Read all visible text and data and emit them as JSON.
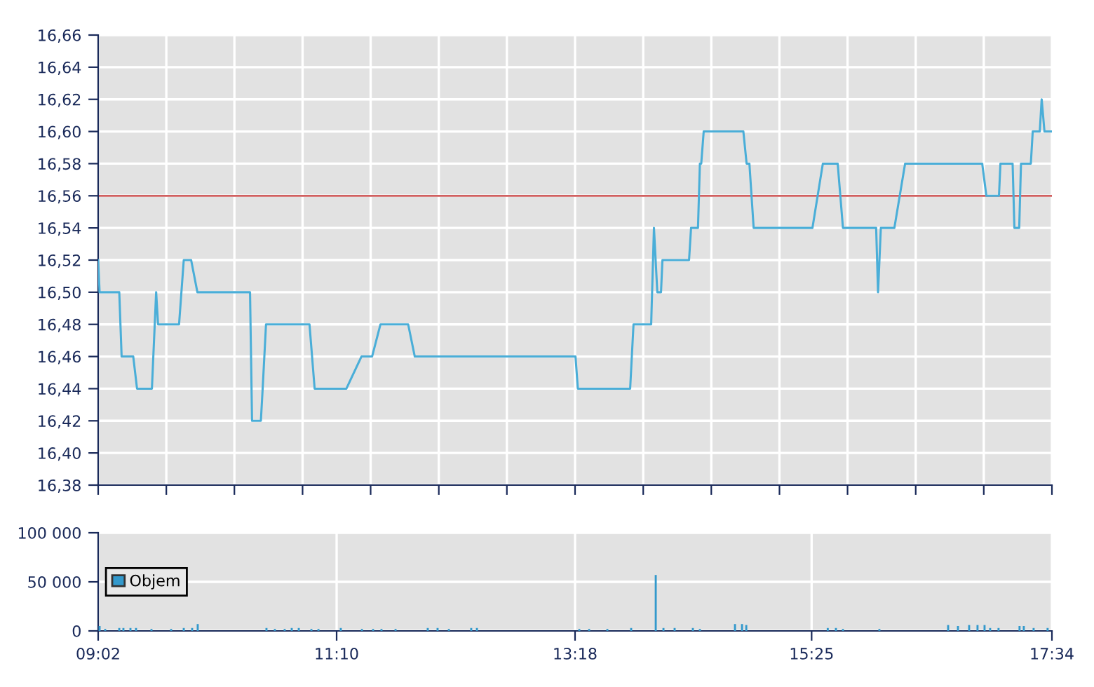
{
  "chart_data": [
    {
      "type": "line",
      "grid": true,
      "tick_labels": "y",
      "legend": false,
      "marker": "none",
      "line_style": "solid",
      "xlim": [
        9.0333,
        17.5667
      ],
      "xticks": [
        {
          "value": 9.0333,
          "label": null
        },
        {
          "value": 9.643,
          "label": null
        },
        {
          "value": 10.252,
          "label": null
        },
        {
          "value": 10.862,
          "label": null
        },
        {
          "value": 11.471,
          "label": null
        },
        {
          "value": 12.081,
          "label": null
        },
        {
          "value": 12.69,
          "label": null
        },
        {
          "value": 13.3,
          "label": null
        },
        {
          "value": 13.91,
          "label": null
        },
        {
          "value": 14.519,
          "label": null
        },
        {
          "value": 15.129,
          "label": null
        },
        {
          "value": 15.738,
          "label": null
        },
        {
          "value": 16.348,
          "label": null
        },
        {
          "value": 16.957,
          "label": null
        },
        {
          "value": 17.5667,
          "label": null
        }
      ],
      "ylim": [
        16.38,
        16.66
      ],
      "yticks": [
        {
          "value": 16.38,
          "label": "16,38"
        },
        {
          "value": 16.4,
          "label": "16,40"
        },
        {
          "value": 16.42,
          "label": "16,42"
        },
        {
          "value": 16.44,
          "label": "16,44"
        },
        {
          "value": 16.46,
          "label": "16,46"
        },
        {
          "value": 16.48,
          "label": "16,48"
        },
        {
          "value": 16.5,
          "label": "16,50"
        },
        {
          "value": 16.52,
          "label": "16,52"
        },
        {
          "value": 16.54,
          "label": "16,54"
        },
        {
          "value": 16.56,
          "label": "16,56"
        },
        {
          "value": 16.58,
          "label": "16,58"
        },
        {
          "value": 16.6,
          "label": "16,60"
        },
        {
          "value": 16.62,
          "label": "16,62"
        },
        {
          "value": 16.64,
          "label": "16,64"
        },
        {
          "value": 16.66,
          "label": "16,66"
        }
      ],
      "ref_lines": [
        {
          "axis": "y",
          "value": 16.56,
          "color": "#d06060",
          "line_style": "solid"
        }
      ],
      "series": [
        {
          "color": "#4aaed8",
          "x": [
            9.0333,
            9.046,
            9.222,
            9.243,
            9.347,
            9.381,
            9.514,
            9.552,
            9.569,
            9.757,
            9.799,
            9.865,
            9.921,
            10.392,
            10.41,
            10.489,
            10.505,
            10.535,
            10.924,
            10.97,
            11.254,
            11.389,
            11.484,
            11.559,
            11.807,
            11.866,
            13.304,
            13.325,
            13.793,
            13.823,
            13.981,
            14.006,
            14.036,
            14.069,
            14.082,
            14.32,
            14.338,
            14.4,
            14.417,
            14.429,
            14.451,
            14.806,
            14.835,
            14.86,
            14.898,
            15.424,
            15.517,
            15.65,
            15.697,
            15.994,
            16.011,
            16.036,
            16.157,
            16.253,
            16.943,
            16.98,
            17.093,
            17.106,
            17.215,
            17.231,
            17.274,
            17.29,
            17.378,
            17.395,
            17.458,
            17.475,
            17.5,
            17.5667
          ],
          "values": [
            16.52,
            16.5,
            16.5,
            16.46,
            16.46,
            16.44,
            16.44,
            16.5,
            16.48,
            16.48,
            16.52,
            16.52,
            16.5,
            16.5,
            16.42,
            16.42,
            16.44,
            16.48,
            16.48,
            16.44,
            16.44,
            16.46,
            16.46,
            16.48,
            16.48,
            16.46,
            16.46,
            16.44,
            16.44,
            16.48,
            16.48,
            16.54,
            16.5,
            16.5,
            16.52,
            16.52,
            16.54,
            16.54,
            16.58,
            16.58,
            16.6,
            16.6,
            16.58,
            16.58,
            16.54,
            16.54,
            16.58,
            16.58,
            16.54,
            16.54,
            16.5,
            16.54,
            16.54,
            16.58,
            16.58,
            16.56,
            16.56,
            16.58,
            16.58,
            16.54,
            16.54,
            16.58,
            16.58,
            16.6,
            16.6,
            16.62,
            16.6,
            16.6
          ]
        }
      ]
    },
    {
      "type": "bar",
      "grid": true,
      "legend": "left",
      "xlim": [
        9.0333,
        17.5667
      ],
      "xticks": [
        {
          "value": 9.0333,
          "label": "09:02"
        },
        {
          "value": 11.1667,
          "label": "11:10"
        },
        {
          "value": 13.3,
          "label": "13:18"
        },
        {
          "value": 15.4167,
          "label": "15:25"
        },
        {
          "value": 17.5667,
          "label": "17:34"
        }
      ],
      "ylim": [
        0,
        100000
      ],
      "yticks": [
        {
          "value": 0,
          "label": "0"
        },
        {
          "value": 50000,
          "label": "50 000"
        },
        {
          "value": 100000,
          "label": "100 000"
        }
      ],
      "series": [
        {
          "name": "Objem",
          "color": "#3399cc",
          "x": [
            9.046,
            9.096,
            9.222,
            9.259,
            9.322,
            9.372,
            9.51,
            9.686,
            9.799,
            9.874,
            9.924,
            10.539,
            10.614,
            10.702,
            10.765,
            10.828,
            10.941,
            11.004,
            11.204,
            11.393,
            11.493,
            11.568,
            11.694,
            11.982,
            12.07,
            12.171,
            12.371,
            12.422,
            13.338,
            13.426,
            13.589,
            13.802,
            14.022,
            14.091,
            14.191,
            14.354,
            14.417,
            14.731,
            14.794,
            14.832,
            15.561,
            15.634,
            15.697,
            16.023,
            16.638,
            16.726,
            16.826,
            16.901,
            16.964,
            17.014,
            17.089,
            17.277,
            17.315,
            17.403,
            17.528
          ],
          "values": [
            5000,
            2000,
            3000,
            3000,
            3000,
            3000,
            2000,
            2000,
            3000,
            3000,
            7000,
            3000,
            2000,
            2000,
            3000,
            3000,
            2000,
            2000,
            3000,
            2000,
            2000,
            2000,
            2000,
            3000,
            3000,
            2000,
            3000,
            3000,
            2000,
            2000,
            2000,
            3000,
            57000,
            3000,
            3000,
            3000,
            2000,
            7000,
            7000,
            6000,
            3000,
            3000,
            2000,
            2000,
            6000,
            5000,
            6000,
            6000,
            6000,
            3000,
            3000,
            5000,
            5000,
            3000,
            3000
          ]
        }
      ]
    }
  ]
}
